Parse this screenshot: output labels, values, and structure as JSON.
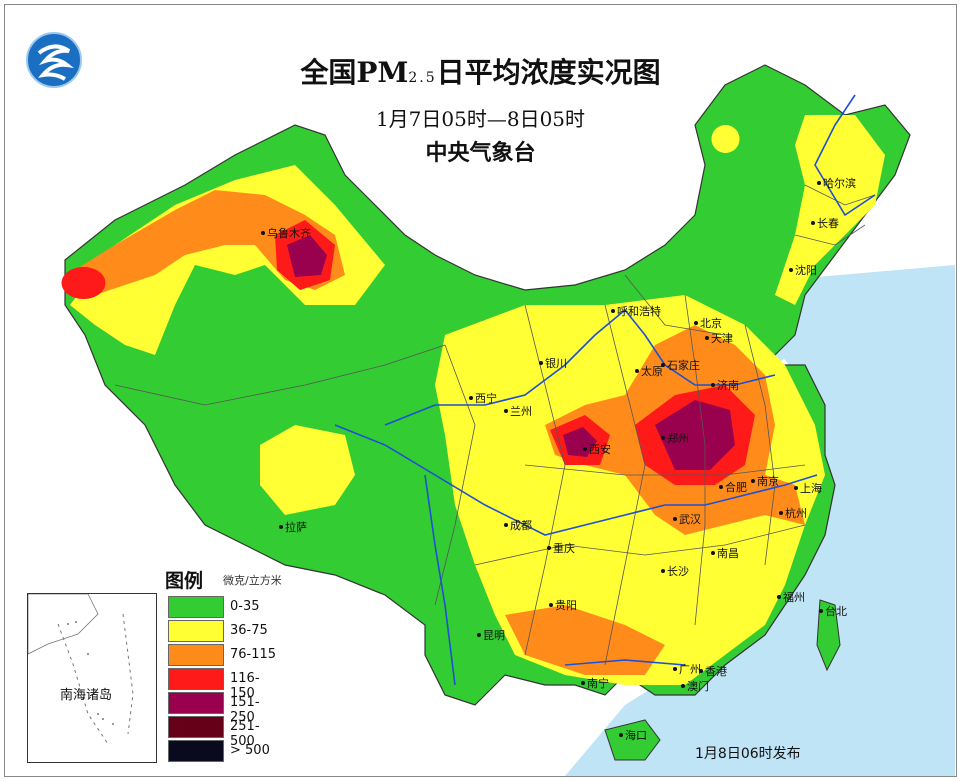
{
  "header": {
    "title_main": "全国PM",
    "title_sub": "2.5",
    "title_rest": "日平均浓度实况图",
    "time_range": "1月7日05时—8日05时",
    "agency": "中央气象台"
  },
  "legend": {
    "title": "图例",
    "unit": "微克/立方米",
    "items": [
      {
        "label": "0-35",
        "color": "#33cc33"
      },
      {
        "label": "36-75",
        "color": "#ffff33"
      },
      {
        "label": "76-115",
        "color": "#ff8c1a"
      },
      {
        "label": "116-150",
        "color": "#ff1a1a"
      },
      {
        "label": "151-250",
        "color": "#99004d"
      },
      {
        "label": "251-500",
        "color": "#660019"
      },
      {
        "label": "> 500",
        "color": "#0a0a1e"
      }
    ]
  },
  "inset": {
    "label": "南海诸岛"
  },
  "footer": {
    "issued": "1月8日06时发布"
  },
  "cities": {
    "urumqi": "乌鲁木齐",
    "harbin": "哈尔滨",
    "changchun": "长春",
    "shenyang": "沈阳",
    "hohhot": "呼和浩特",
    "beijing": "北京",
    "tianjin": "天津",
    "shijiazhuang": "石家庄",
    "taiyuan": "太原",
    "jinan": "济南",
    "yinchuan": "银川",
    "xining": "西宁",
    "lanzhou": "兰州",
    "xian": "西安",
    "zhengzhou": "郑州",
    "hefei": "合肥",
    "nanjing": "南京",
    "shanghai": "上海",
    "hangzhou": "杭州",
    "wuhan": "武汉",
    "chengdu": "成都",
    "chongqing": "重庆",
    "lhasa": "拉萨",
    "nanchang": "南昌",
    "changsha": "长沙",
    "guiyang": "贵阳",
    "fuzhou": "福州",
    "taipei": "台北",
    "kunming": "昆明",
    "guangzhou": "广州",
    "hongkong": "香港",
    "macau": "澳门",
    "nanning": "南宁",
    "haikou": "海口"
  },
  "colors": {
    "sea": "#bfe4f5",
    "river": "#1f4fd6",
    "border": "#555555"
  }
}
